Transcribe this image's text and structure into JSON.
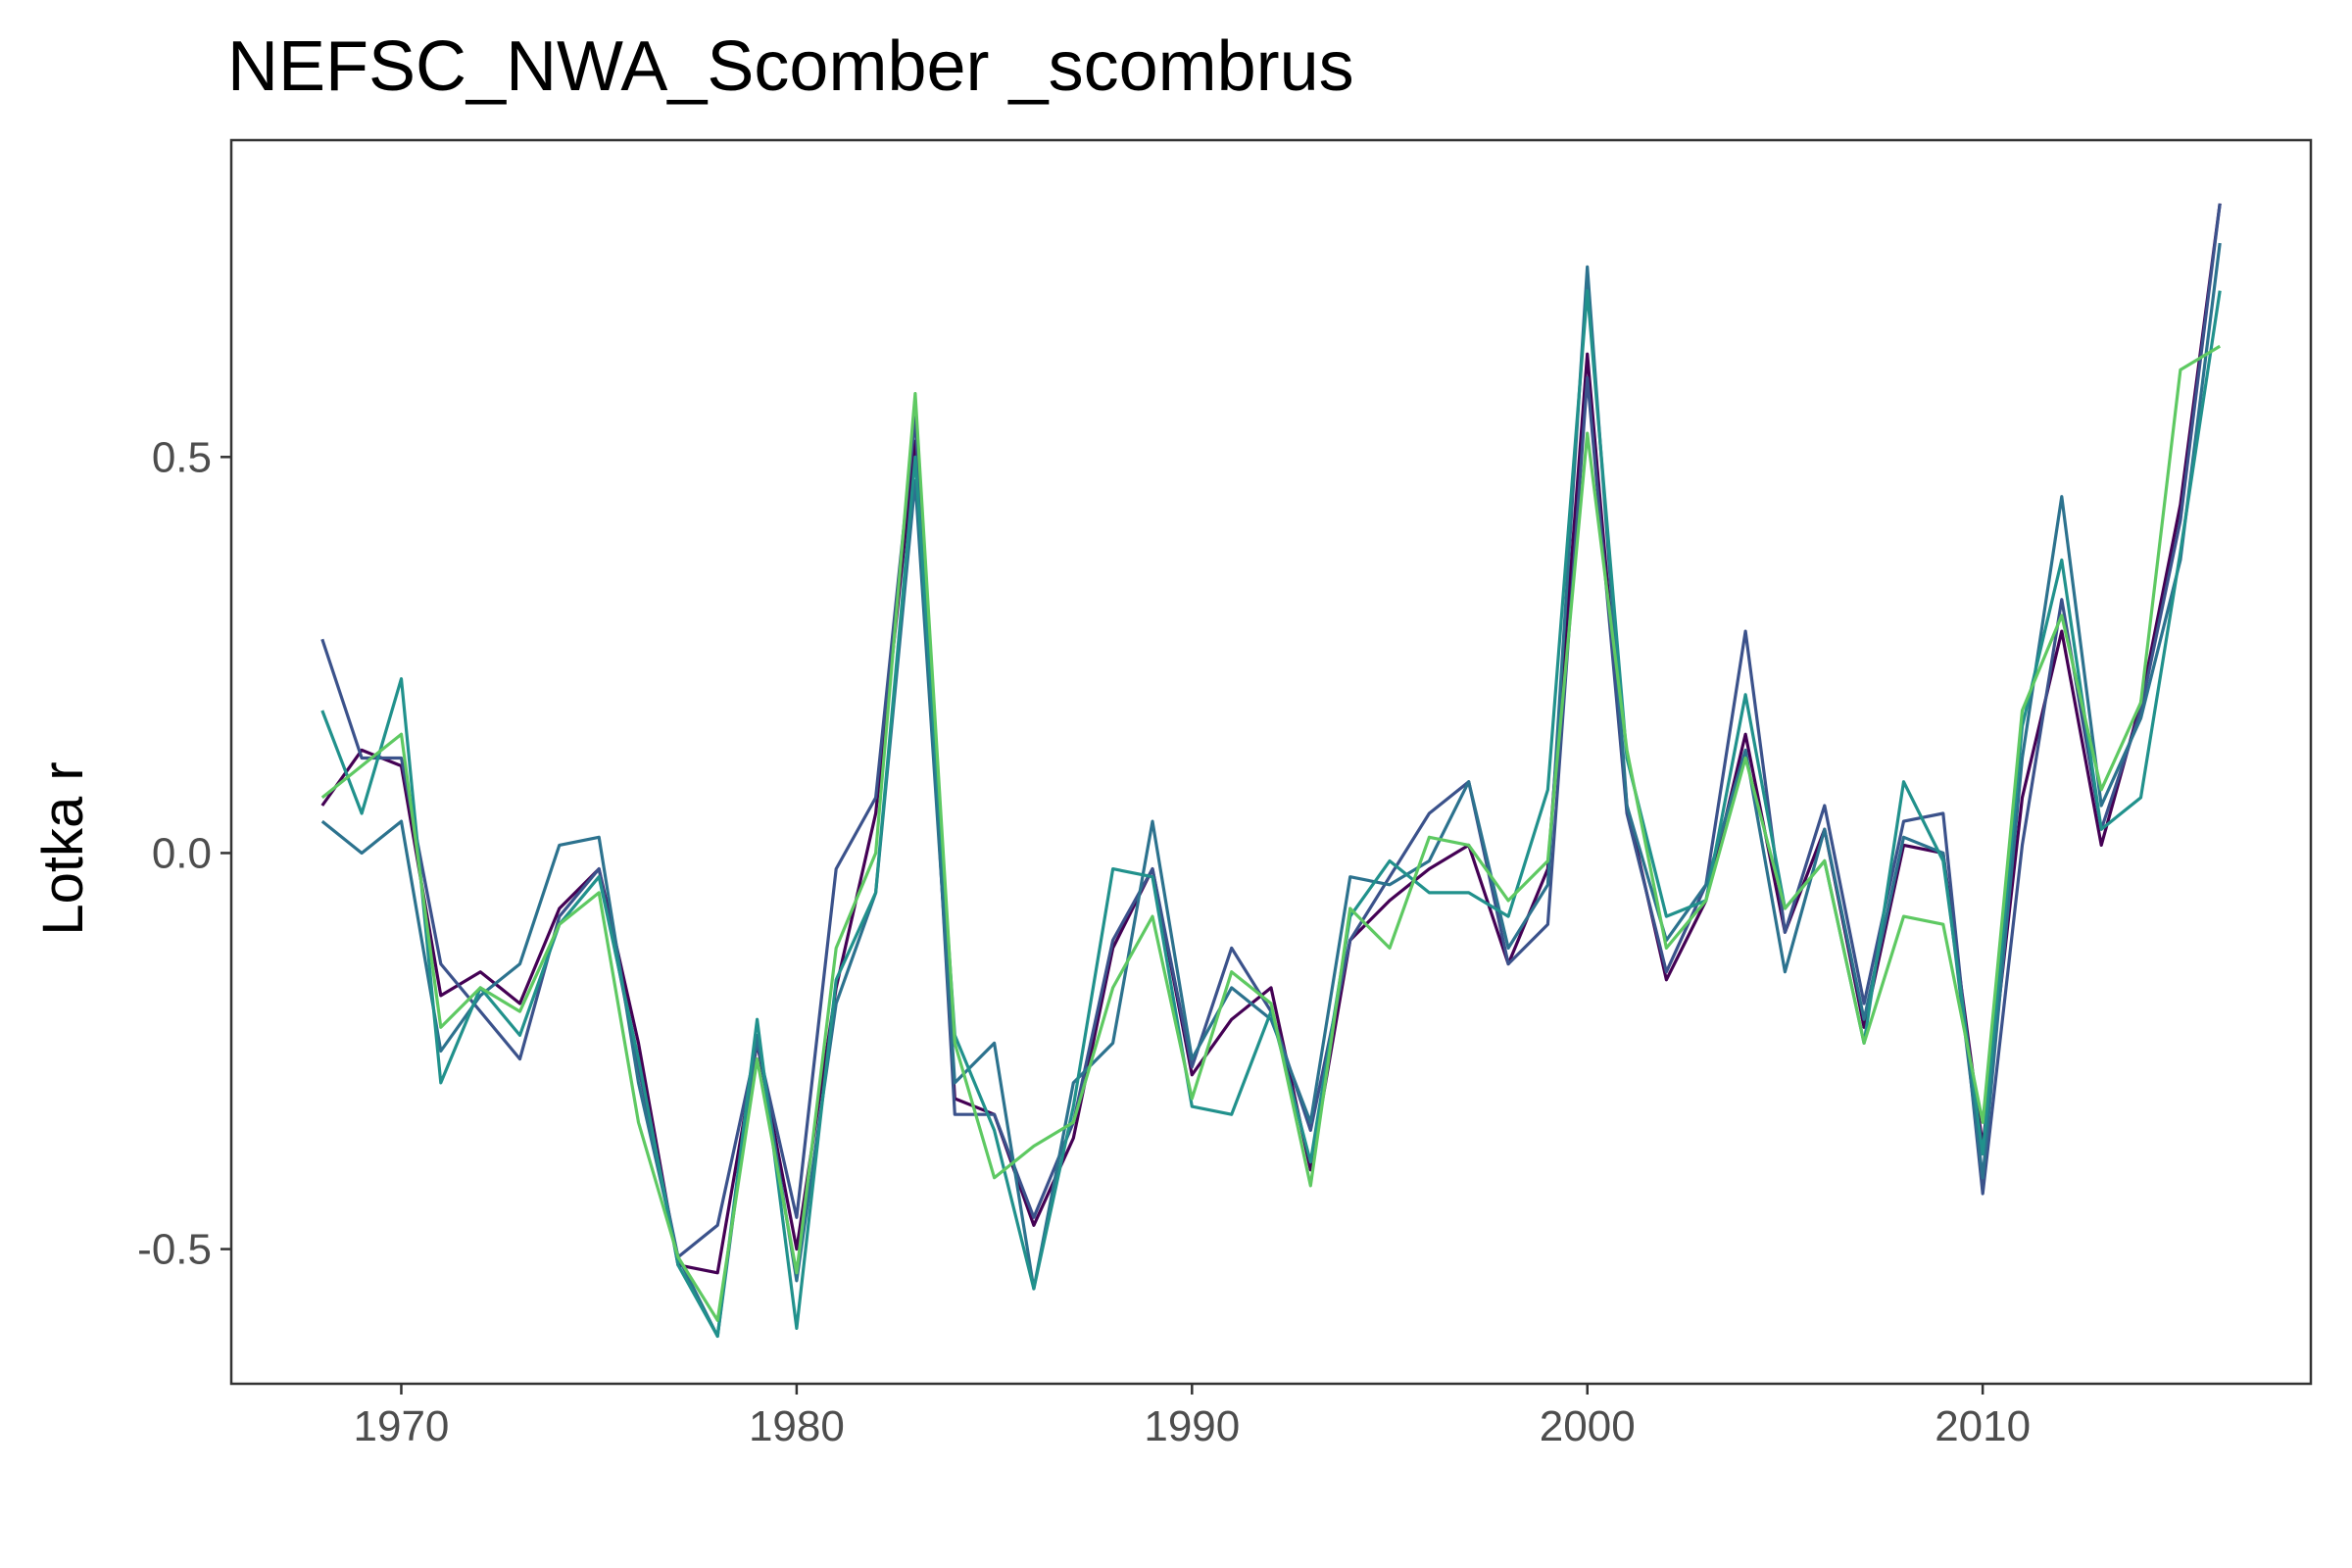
{
  "chart_data": {
    "type": "line",
    "title": "NEFSC_NWA_Scomber _scombrus",
    "xlabel": "",
    "ylabel": "Lotka r",
    "xlim": [
      1965.7,
      2018.3
    ],
    "ylim": [
      -0.67,
      0.9
    ],
    "xticks": [
      1970,
      1980,
      1990,
      2000,
      2010
    ],
    "xtick_labels": [
      "1970",
      "1980",
      "1990",
      "2000",
      "2010"
    ],
    "yticks": [
      -0.5,
      0.0,
      0.5
    ],
    "ytick_labels": [
      "-0.5",
      "0.0",
      "0.5"
    ],
    "grid": false,
    "legend": "none",
    "x": [
      1968,
      1969,
      1970,
      1971,
      1972,
      1973,
      1974,
      1975,
      1976,
      1977,
      1978,
      1979,
      1980,
      1981,
      1982,
      1983,
      1984,
      1985,
      1986,
      1987,
      1988,
      1989,
      1990,
      1991,
      1992,
      1993,
      1994,
      1995,
      1996,
      1997,
      1998,
      1999,
      2000,
      2001,
      2002,
      2003,
      2004,
      2005,
      2006,
      2007,
      2008,
      2009,
      2010,
      2011,
      2012,
      2013,
      2014,
      2015,
      2016
    ],
    "series": [
      {
        "color": "#440154",
        "values": [
          0.06,
          0.13,
          0.11,
          -0.18,
          -0.15,
          -0.19,
          -0.07,
          -0.02,
          -0.24,
          -0.52,
          -0.53,
          -0.24,
          -0.5,
          -0.17,
          0.05,
          0.52,
          -0.31,
          -0.33,
          -0.47,
          -0.36,
          -0.12,
          -0.02,
          -0.28,
          -0.21,
          -0.17,
          -0.4,
          -0.11,
          -0.06,
          -0.02,
          0.01,
          -0.14,
          -0.02,
          0.63,
          0.06,
          -0.16,
          -0.06,
          0.15,
          -0.1,
          0.03,
          -0.22,
          0.01,
          0.0,
          -0.37,
          0.07,
          0.28,
          0.01,
          0.19,
          0.44,
          0.82
        ]
      },
      {
        "color": "#3b528b",
        "values": [
          0.27,
          0.12,
          0.12,
          -0.14,
          -0.2,
          -0.26,
          -0.08,
          -0.02,
          -0.27,
          -0.51,
          -0.47,
          -0.24,
          -0.46,
          -0.02,
          0.07,
          0.55,
          -0.33,
          -0.33,
          -0.46,
          -0.34,
          -0.11,
          -0.02,
          -0.27,
          -0.12,
          -0.2,
          -0.35,
          -0.11,
          -0.03,
          0.05,
          0.09,
          -0.14,
          -0.09,
          0.6,
          0.05,
          -0.15,
          -0.04,
          0.28,
          -0.1,
          0.06,
          -0.19,
          0.04,
          0.05,
          -0.43,
          0.01,
          0.32,
          0.03,
          0.18,
          0.42,
          0.82
        ]
      },
      {
        "color": "#2c728e",
        "values": [
          0.04,
          0.0,
          0.04,
          -0.25,
          -0.18,
          -0.14,
          0.01,
          0.02,
          -0.29,
          -0.51,
          -0.61,
          -0.23,
          -0.54,
          -0.19,
          -0.05,
          0.47,
          -0.29,
          -0.24,
          -0.55,
          -0.29,
          -0.24,
          0.04,
          -0.26,
          -0.17,
          -0.21,
          -0.34,
          -0.03,
          -0.04,
          -0.01,
          0.09,
          -0.12,
          -0.04,
          0.74,
          0.06,
          -0.11,
          -0.04,
          0.13,
          -0.15,
          0.03,
          -0.21,
          0.02,
          0.0,
          -0.41,
          0.12,
          0.45,
          0.06,
          0.17,
          0.37,
          0.77
        ]
      },
      {
        "color": "#21918c",
        "values": [
          0.18,
          0.05,
          0.22,
          -0.29,
          -0.17,
          -0.23,
          -0.09,
          -0.03,
          -0.26,
          -0.52,
          -0.61,
          -0.21,
          -0.6,
          -0.16,
          -0.05,
          0.5,
          -0.23,
          -0.35,
          -0.55,
          -0.32,
          -0.02,
          -0.03,
          -0.32,
          -0.33,
          -0.2,
          -0.39,
          -0.08,
          -0.01,
          -0.05,
          -0.05,
          -0.08,
          0.08,
          0.71,
          0.12,
          -0.08,
          -0.06,
          0.2,
          -0.07,
          -0.01,
          -0.24,
          0.09,
          -0.01,
          -0.38,
          0.16,
          0.37,
          0.03,
          0.07,
          0.38,
          0.71
        ]
      },
      {
        "color": "#5ec962",
        "values": [
          0.07,
          0.11,
          0.15,
          -0.22,
          -0.17,
          -0.2,
          -0.09,
          -0.05,
          -0.34,
          -0.51,
          -0.59,
          -0.26,
          -0.53,
          -0.12,
          0.0,
          0.58,
          -0.24,
          -0.41,
          -0.37,
          -0.34,
          -0.17,
          -0.08,
          -0.31,
          -0.15,
          -0.19,
          -0.42,
          -0.07,
          -0.12,
          0.02,
          0.01,
          -0.06,
          -0.01,
          0.53,
          0.13,
          -0.12,
          -0.06,
          0.12,
          -0.07,
          -0.01,
          -0.24,
          -0.08,
          -0.09,
          -0.34,
          0.18,
          0.3,
          0.08,
          0.19,
          0.61,
          0.64
        ]
      }
    ]
  }
}
